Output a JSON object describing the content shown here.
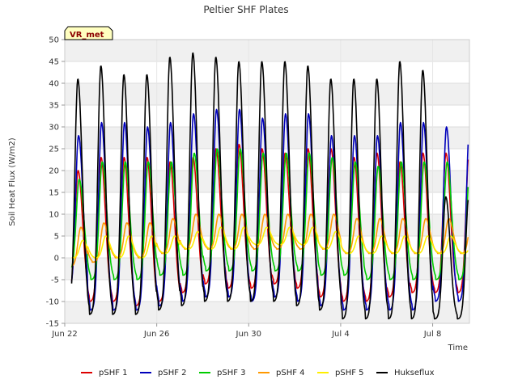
{
  "chart_data": {
    "type": "line",
    "title": "Peltier SHF Plates",
    "site_badge": "VR_met",
    "xlabel": "Time",
    "ylabel": "Soil Heat Flux (W/m2)",
    "ylim": [
      -15,
      50
    ],
    "yticks": [
      -15,
      -10,
      -5,
      0,
      5,
      10,
      15,
      20,
      25,
      30,
      35,
      40,
      45,
      50
    ],
    "xlim_days": [
      0,
      17.6
    ],
    "xticks": [
      {
        "day": 0,
        "label": "Jun 22"
      },
      {
        "day": 4,
        "label": "Jun 26"
      },
      {
        "day": 8,
        "label": "Jun 30"
      },
      {
        "day": 12,
        "label": "Jul 4"
      },
      {
        "day": 16,
        "label": "Jul 8"
      }
    ],
    "grid": true,
    "legend_position": "bottom",
    "series": [
      {
        "name": "pSHF 1",
        "color": "#dd0000",
        "phase": 0.58,
        "peaks": [
          20,
          23,
          23,
          23,
          22,
          23,
          25,
          26,
          25,
          24,
          25,
          25,
          23,
          24,
          22,
          24,
          24
        ],
        "troughs": [
          -8,
          -10,
          -10,
          -11,
          -10,
          -8,
          -6,
          -7,
          -7,
          -6,
          -7,
          -9,
          -10,
          -10,
          -9,
          -8,
          -8
        ]
      },
      {
        "name": "pSHF 2",
        "color": "#0000bb",
        "phase": 0.6,
        "peaks": [
          28,
          31,
          31,
          30,
          31,
          33,
          34,
          34,
          32,
          33,
          33,
          28,
          28,
          28,
          31,
          31,
          30
        ],
        "troughs": [
          -8,
          -12,
          -12,
          -12,
          -11,
          -10,
          -9,
          -9,
          -10,
          -9,
          -10,
          -11,
          -12,
          -12,
          -12,
          -12,
          -10
        ]
      },
      {
        "name": "pSHF 3",
        "color": "#00cc00",
        "phase": 0.63,
        "peaks": [
          18,
          22,
          22,
          22,
          22,
          24,
          25,
          25,
          24,
          24,
          24,
          23,
          22,
          21,
          22,
          22,
          22
        ],
        "troughs": [
          -3,
          -5,
          -5,
          -5,
          -4,
          -4,
          -3,
          -3,
          -3,
          -3,
          -3,
          -4,
          -4,
          -5,
          -5,
          -5,
          -5
        ]
      },
      {
        "name": "pSHF 4",
        "color": "#ff9900",
        "phase": 0.7,
        "peaks": [
          7,
          8,
          8,
          8,
          9,
          10,
          10,
          10,
          10,
          10,
          10,
          10,
          9,
          9,
          9,
          9,
          9
        ],
        "troughs": [
          -2,
          -1,
          0,
          0,
          1,
          2,
          2,
          2,
          2,
          2,
          2,
          2,
          1,
          1,
          1,
          1,
          1
        ]
      },
      {
        "name": "pSHF 5",
        "color": "#ffee00",
        "phase": 0.78,
        "peaks": [
          4,
          5,
          5,
          5,
          5,
          6,
          7,
          7,
          7,
          7,
          7,
          6,
          5,
          5,
          5,
          5,
          5
        ],
        "troughs": [
          0,
          0,
          0,
          0,
          1,
          2,
          2,
          2,
          3,
          3,
          3,
          2,
          1,
          1,
          1,
          1,
          1
        ]
      },
      {
        "name": "Hukseflux",
        "color": "#000000",
        "phase": 0.57,
        "peaks": [
          41,
          44,
          42,
          42,
          46,
          47,
          46,
          45,
          45,
          45,
          44,
          41,
          41,
          41,
          45,
          43,
          14
        ],
        "troughs": [
          -12,
          -13,
          -13,
          -13,
          -12,
          -11,
          -10,
          -10,
          -10,
          -10,
          -11,
          -12,
          -14,
          -14,
          -14,
          -14,
          -14
        ]
      }
    ]
  }
}
